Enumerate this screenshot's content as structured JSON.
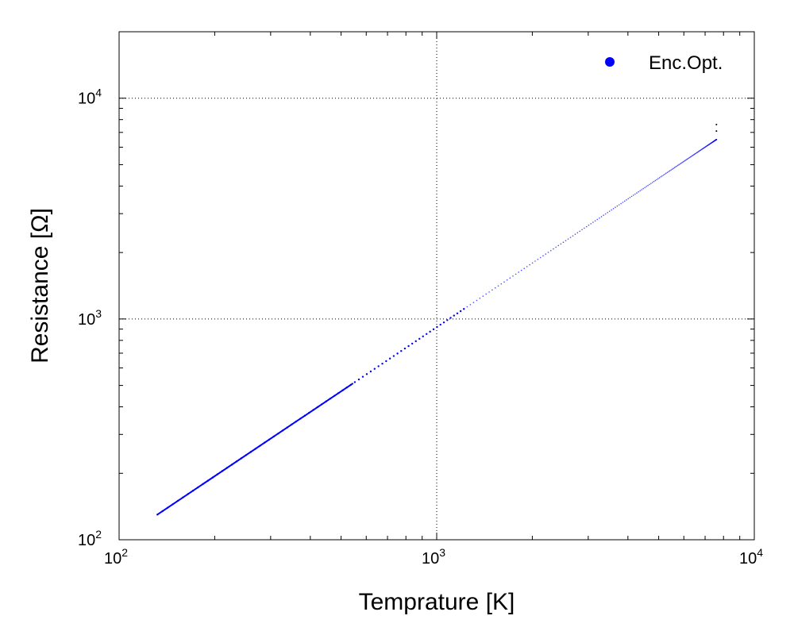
{
  "chart_data": {
    "type": "scatter",
    "xlabel": "Temprature [K]",
    "ylabel": "Resistance [Ω]",
    "xscale": "log",
    "yscale": "log",
    "xlim": [
      100,
      10000
    ],
    "ylim": [
      100,
      20000
    ],
    "x_ticks": [
      {
        "value": 100,
        "base": "10",
        "exp": "2"
      },
      {
        "value": 1000,
        "base": "10",
        "exp": "3"
      },
      {
        "value": 10000,
        "base": "10",
        "exp": "4"
      }
    ],
    "y_ticks": [
      {
        "value": 100,
        "base": "10",
        "exp": "2"
      },
      {
        "value": 1000,
        "base": "10",
        "exp": "3"
      },
      {
        "value": 10000,
        "base": "10",
        "exp": "4"
      }
    ],
    "grid": true,
    "legend": {
      "position": "top-right"
    },
    "series": [
      {
        "name": "Enc.Opt.",
        "color": "#0000ff",
        "x_range": [
          132,
          7600
        ],
        "y_range": [
          130,
          6500
        ],
        "slope_log": 0.96
      }
    ],
    "extra_markers": [
      {
        "x": 7600,
        "y": 7600,
        "color": "#000000"
      },
      {
        "x": 7600,
        "y": 7100,
        "color": "#000000"
      }
    ]
  }
}
